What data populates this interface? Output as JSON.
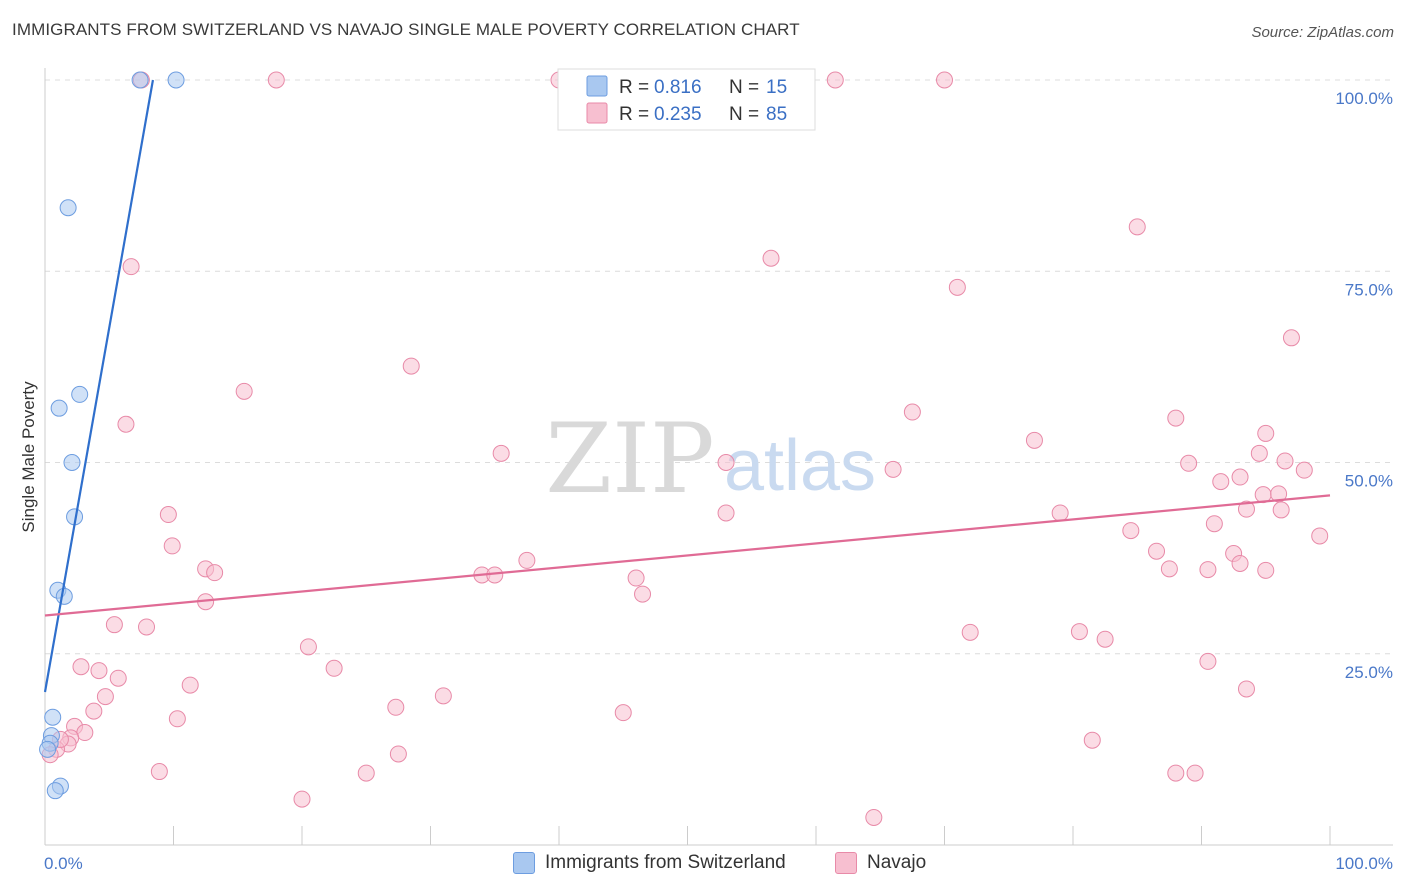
{
  "header": {
    "title": "IMMIGRANTS FROM SWITZERLAND VS NAVAJO SINGLE MALE POVERTY CORRELATION CHART",
    "source": "Source: ZipAtlas.com"
  },
  "watermark": {
    "zip": "ZIP",
    "atlas": "atlas"
  },
  "chart_data": {
    "type": "scatter",
    "title": "IMMIGRANTS FROM SWITZERLAND VS NAVAJO SINGLE MALE POVERTY CORRELATION CHART",
    "xlabel": "",
    "ylabel": "Single Male Poverty",
    "xlim": [
      0,
      100
    ],
    "ylim": [
      0,
      100
    ],
    "x_tick_labels": {
      "left": "0.0%",
      "right": "100.0%"
    },
    "y_ticks": [
      {
        "value": 25,
        "label": "25.0%"
      },
      {
        "value": 50,
        "label": "50.0%"
      },
      {
        "value": 75,
        "label": "75.0%"
      },
      {
        "value": 100,
        "label": "100.0%"
      }
    ],
    "grid": true,
    "legend_position": "top-center",
    "series": [
      {
        "name": "Immigrants from Switzerland",
        "color": "#a9c8f0",
        "edge": "#6d9de0",
        "line_color": "#2f6fcc",
        "r_label": "R =",
        "r_value": "0.816",
        "n_label": "N =",
        "n_value": "15",
        "trend": {
          "x0": 0.0,
          "y0": 20.0,
          "x1": 8.4,
          "y1": 100.0
        },
        "points": [
          [
            7.4,
            100.0
          ],
          [
            10.2,
            100.0
          ],
          [
            1.8,
            83.3
          ],
          [
            2.7,
            58.9
          ],
          [
            1.1,
            57.1
          ],
          [
            2.1,
            50.0
          ],
          [
            2.3,
            42.9
          ],
          [
            1.0,
            33.3
          ],
          [
            1.5,
            32.5
          ],
          [
            0.6,
            16.7
          ],
          [
            0.5,
            14.3
          ],
          [
            0.4,
            13.3
          ],
          [
            0.2,
            12.5
          ],
          [
            1.2,
            7.7
          ],
          [
            0.8,
            7.1
          ]
        ]
      },
      {
        "name": "Navajo",
        "color": "#f7bfd0",
        "edge": "#e88aa8",
        "line_color": "#e06b95",
        "r_label": "R =",
        "r_value": "0.235",
        "n_label": "N =",
        "n_value": "85",
        "trend": {
          "x0": 0.0,
          "y0": 30.0,
          "x1": 100.0,
          "y1": 45.7
        },
        "points": [
          [
            7.5,
            100.0
          ],
          [
            18.0,
            100.0
          ],
          [
            40.0,
            100.0
          ],
          [
            61.5,
            100.0
          ],
          [
            70.0,
            100.0
          ],
          [
            85.0,
            80.8
          ],
          [
            56.5,
            76.7
          ],
          [
            6.7,
            75.6
          ],
          [
            71.0,
            72.9
          ],
          [
            97.0,
            66.3
          ],
          [
            28.5,
            62.6
          ],
          [
            15.5,
            59.3
          ],
          [
            67.5,
            56.6
          ],
          [
            88.0,
            55.8
          ],
          [
            6.3,
            55.0
          ],
          [
            77.0,
            52.9
          ],
          [
            95.0,
            53.8
          ],
          [
            35.5,
            51.2
          ],
          [
            53.0,
            50.0
          ],
          [
            66.0,
            49.1
          ],
          [
            89.0,
            49.9
          ],
          [
            94.5,
            51.2
          ],
          [
            96.5,
            50.2
          ],
          [
            98.0,
            49.0
          ],
          [
            91.5,
            47.5
          ],
          [
            93.0,
            48.1
          ],
          [
            94.8,
            45.8
          ],
          [
            96.0,
            45.9
          ],
          [
            91.0,
            42.0
          ],
          [
            93.5,
            43.9
          ],
          [
            96.2,
            43.8
          ],
          [
            53.0,
            43.4
          ],
          [
            79.0,
            43.4
          ],
          [
            9.6,
            43.2
          ],
          [
            84.5,
            41.1
          ],
          [
            99.2,
            40.4
          ],
          [
            9.9,
            39.1
          ],
          [
            37.5,
            37.2
          ],
          [
            86.5,
            38.4
          ],
          [
            92.5,
            38.1
          ],
          [
            93.0,
            36.8
          ],
          [
            87.5,
            36.1
          ],
          [
            90.5,
            36.0
          ],
          [
            95.0,
            35.9
          ],
          [
            12.5,
            36.1
          ],
          [
            13.2,
            35.6
          ],
          [
            34.0,
            35.3
          ],
          [
            35.0,
            35.3
          ],
          [
            46.0,
            34.9
          ],
          [
            46.5,
            32.8
          ],
          [
            12.5,
            31.8
          ],
          [
            5.4,
            28.8
          ],
          [
            7.9,
            28.5
          ],
          [
            72.0,
            27.8
          ],
          [
            80.5,
            27.9
          ],
          [
            82.5,
            26.9
          ],
          [
            20.5,
            25.9
          ],
          [
            2.8,
            23.3
          ],
          [
            4.2,
            22.8
          ],
          [
            5.7,
            21.8
          ],
          [
            22.5,
            23.1
          ],
          [
            90.5,
            24.0
          ],
          [
            11.3,
            20.9
          ],
          [
            4.7,
            19.4
          ],
          [
            31.0,
            19.5
          ],
          [
            93.5,
            20.4
          ],
          [
            3.8,
            17.5
          ],
          [
            10.3,
            16.5
          ],
          [
            27.3,
            18.0
          ],
          [
            45.0,
            17.3
          ],
          [
            2.3,
            15.5
          ],
          [
            3.1,
            14.7
          ],
          [
            2.0,
            14.0
          ],
          [
            1.8,
            13.2
          ],
          [
            0.9,
            12.5
          ],
          [
            81.5,
            13.7
          ],
          [
            27.5,
            11.9
          ],
          [
            8.9,
            9.6
          ],
          [
            25.0,
            9.4
          ],
          [
            88.0,
            9.4
          ],
          [
            89.5,
            9.4
          ],
          [
            20.0,
            6.0
          ],
          [
            64.5,
            3.6
          ],
          [
            0.4,
            11.8
          ],
          [
            1.2,
            13.8
          ]
        ]
      }
    ]
  }
}
